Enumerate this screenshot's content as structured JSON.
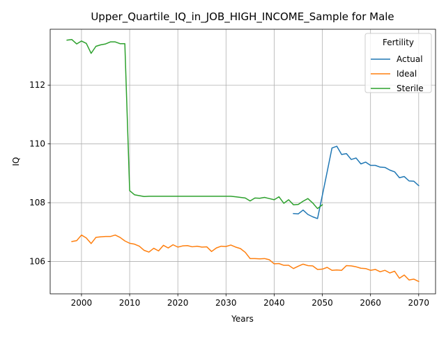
{
  "chart_data": {
    "type": "line",
    "title": "Upper_Quartile_IQ_in_JOB_HIGH_INCOME_Sample for Male",
    "xlabel": "Years",
    "ylabel": "IQ",
    "xlim": [
      1993.5,
      2073.5
    ],
    "ylim": [
      104.9,
      113.9
    ],
    "xticks": [
      2000,
      2010,
      2020,
      2030,
      2040,
      2050,
      2060,
      2070
    ],
    "yticks": [
      106,
      108,
      110,
      112
    ],
    "grid": true,
    "legend": {
      "title": "Fertility",
      "placement": "upper right"
    },
    "series": [
      {
        "name": "Actual",
        "color": "#1f77b4",
        "x": [
          2044,
          2045,
          2046,
          2047,
          2048,
          2049,
          2050,
          2051,
          2052,
          2053,
          2054,
          2055,
          2056,
          2057,
          2058,
          2059,
          2060,
          2061,
          2062,
          2063,
          2064,
          2065,
          2066,
          2067,
          2068,
          2069,
          2070
        ],
        "y": [
          107.63,
          107.62,
          107.75,
          107.6,
          107.52,
          107.46,
          108.25,
          109.05,
          109.86,
          109.92,
          109.64,
          109.67,
          109.47,
          109.52,
          109.32,
          109.38,
          109.27,
          109.27,
          109.21,
          109.2,
          109.11,
          109.05,
          108.85,
          108.89,
          108.74,
          108.73,
          108.58
        ]
      },
      {
        "name": "Ideal",
        "color": "#ff7f0e",
        "x": [
          1998,
          1999,
          2000,
          2001,
          2002,
          2003,
          2004,
          2005,
          2006,
          2007,
          2008,
          2009,
          2010,
          2011,
          2012,
          2013,
          2014,
          2015,
          2016,
          2017,
          2018,
          2019,
          2020,
          2021,
          2022,
          2023,
          2024,
          2025,
          2026,
          2027,
          2028,
          2029,
          2030,
          2031,
          2032,
          2033,
          2034,
          2035,
          2036,
          2037,
          2038,
          2039,
          2040,
          2041,
          2042,
          2043,
          2044,
          2045,
          2046,
          2047,
          2048,
          2049,
          2050,
          2051,
          2052,
          2053,
          2054,
          2055,
          2056,
          2057,
          2058,
          2059,
          2060,
          2061,
          2062,
          2063,
          2064,
          2065,
          2066,
          2067,
          2068,
          2069,
          2070
        ],
        "y": [
          106.68,
          106.71,
          106.9,
          106.8,
          106.61,
          106.82,
          106.84,
          106.85,
          106.85,
          106.9,
          106.82,
          106.7,
          106.62,
          106.59,
          106.52,
          106.38,
          106.32,
          106.45,
          106.36,
          106.55,
          106.46,
          106.57,
          106.49,
          106.53,
          106.54,
          106.5,
          106.52,
          106.49,
          106.5,
          106.34,
          106.46,
          106.52,
          106.51,
          106.56,
          106.49,
          106.44,
          106.31,
          106.1,
          106.1,
          106.09,
          106.1,
          106.06,
          105.92,
          105.93,
          105.87,
          105.87,
          105.76,
          105.84,
          105.91,
          105.86,
          105.85,
          105.73,
          105.74,
          105.8,
          105.7,
          105.71,
          105.7,
          105.86,
          105.85,
          105.82,
          105.77,
          105.76,
          105.7,
          105.73,
          105.65,
          105.7,
          105.61,
          105.67,
          105.43,
          105.54,
          105.37,
          105.4,
          105.32
        ]
      },
      {
        "name": "Sterile",
        "color": "#2ca02c",
        "x": [
          1997,
          1998,
          1999,
          2000,
          2001,
          2002,
          2003,
          2004,
          2005,
          2006,
          2007,
          2008,
          2009,
          2010,
          2011,
          2012,
          2013,
          2014,
          2015,
          2016,
          2017,
          2018,
          2019,
          2020,
          2021,
          2022,
          2023,
          2024,
          2025,
          2026,
          2027,
          2028,
          2029,
          2030,
          2031,
          2032,
          2033,
          2034,
          2035,
          2036,
          2037,
          2038,
          2039,
          2040,
          2041,
          2042,
          2043,
          2044,
          2045,
          2046,
          2047,
          2048,
          2049,
          2050
        ],
        "y": [
          113.53,
          113.55,
          113.4,
          113.5,
          113.42,
          113.08,
          113.32,
          113.37,
          113.4,
          113.47,
          113.47,
          113.41,
          113.41,
          108.41,
          108.27,
          108.24,
          108.21,
          108.22,
          108.22,
          108.22,
          108.22,
          108.22,
          108.22,
          108.22,
          108.22,
          108.22,
          108.22,
          108.22,
          108.22,
          108.22,
          108.22,
          108.22,
          108.22,
          108.22,
          108.22,
          108.2,
          108.18,
          108.16,
          108.06,
          108.16,
          108.15,
          108.18,
          108.14,
          108.1,
          108.2,
          107.98,
          108.1,
          107.93,
          107.94,
          108.05,
          108.14,
          107.99,
          107.8,
          107.93
        ]
      }
    ]
  }
}
